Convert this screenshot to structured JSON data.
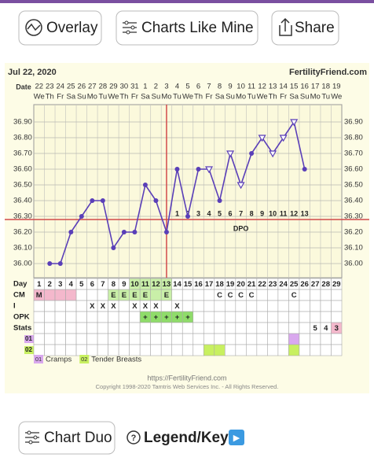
{
  "buttons": {
    "overlay": "Overlay",
    "charts_like_mine": "Charts Like Mine",
    "share": "Share",
    "chart_duo": "Chart Duo",
    "legend_key": "Legend/Key",
    "play": "▶"
  },
  "footer": {
    "url": "https://FertilityFriend.com",
    "copyright": "Copyright 1998-2020 Tamtris Web Services Inc. - All Rights Reserved."
  },
  "chart_data": {
    "type": "line",
    "date": "Jul 22, 2020",
    "site": "FertilityFriend.com",
    "xlabel": "Date",
    "categories": [
      "22",
      "23",
      "24",
      "25",
      "26",
      "27",
      "28",
      "29",
      "30",
      "31",
      "1",
      "2",
      "3",
      "4",
      "5",
      "6",
      "7",
      "8",
      "9",
      "10",
      "11",
      "12",
      "13",
      "14",
      "15",
      "16",
      "17",
      "18",
      "19"
    ],
    "weekdays": [
      "We",
      "Th",
      "Fr",
      "Sa",
      "Su",
      "Mo",
      "Tu",
      "We",
      "Th",
      "Fr",
      "Sa",
      "Su",
      "Mo",
      "Tu",
      "We",
      "Th",
      "Fr",
      "Sa",
      "Su",
      "Mo",
      "Tu",
      "We",
      "Th",
      "Fr",
      "Sa",
      "Su",
      "Mo",
      "Tu",
      "We"
    ],
    "series": [
      {
        "color": "#5a3fb8",
        "values": [
          null,
          36.0,
          36.0,
          36.2,
          36.3,
          36.4,
          36.4,
          36.1,
          36.2,
          36.2,
          36.5,
          36.4,
          36.2,
          36.6,
          36.3,
          36.6,
          36.6,
          36.4,
          36.7,
          36.5,
          36.7,
          36.8,
          36.7,
          36.8,
          36.9,
          36.6,
          null,
          null,
          null
        ],
        "markers": [
          null,
          "circle",
          "circle",
          "circle",
          "circle",
          "circle",
          "circle",
          "circle",
          "circle",
          "circle",
          "circle",
          "circle",
          "circle",
          "circle",
          "circle",
          "circle",
          "triangle",
          "circle",
          "triangle",
          "triangle",
          "circle",
          "triangle",
          "triangle",
          "triangle",
          "triangle",
          "circle",
          null,
          null,
          null
        ]
      }
    ],
    "ylim": [
      35.91,
      37.01
    ],
    "yticks": [
      {
        "value": 36.0,
        "label": "36.00"
      },
      {
        "value": 36.1,
        "label": "36.10"
      },
      {
        "value": 36.2,
        "label": "36.20"
      },
      {
        "value": 36.3,
        "label": "36.30"
      },
      {
        "value": 36.4,
        "label": "36.40"
      },
      {
        "value": 36.5,
        "label": "36.50"
      },
      {
        "value": 36.6,
        "label": "36.60"
      },
      {
        "value": 36.7,
        "label": "36.70"
      },
      {
        "value": 36.8,
        "label": "36.80"
      },
      {
        "value": 36.9,
        "label": "36.90"
      }
    ],
    "grid": true,
    "coverline": 36.28,
    "coverline_color": "#d24a4a",
    "ovulation_day": 13,
    "dpo_label": "DPO",
    "dpo": [
      null,
      null,
      null,
      null,
      null,
      null,
      null,
      null,
      null,
      null,
      null,
      null,
      null,
      1,
      2,
      3,
      4,
      5,
      6,
      7,
      8,
      9,
      10,
      11,
      12,
      13,
      null,
      null,
      null
    ],
    "rows": [
      {
        "label": "Day",
        "cells": [
          1,
          2,
          3,
          4,
          5,
          6,
          7,
          8,
          9,
          10,
          11,
          12,
          13,
          14,
          15,
          16,
          17,
          18,
          19,
          20,
          21,
          22,
          23,
          24,
          25,
          26,
          27,
          28,
          29
        ],
        "fills": [
          null,
          null,
          null,
          null,
          null,
          null,
          null,
          null,
          null,
          "#c9efa8",
          "#c9efa8",
          "#c9efa8",
          "#c9efa8",
          null,
          null,
          null,
          null,
          null,
          null,
          null,
          null,
          null,
          null,
          null,
          null,
          null,
          null,
          null,
          null
        ]
      },
      {
        "label": "CM",
        "cells": [
          "M",
          null,
          null,
          null,
          null,
          null,
          null,
          "E",
          "E",
          "E",
          "E",
          null,
          "E",
          null,
          null,
          null,
          null,
          "C",
          "C",
          "C",
          "C",
          null,
          null,
          null,
          "C",
          null,
          null,
          null,
          null
        ],
        "fills": [
          "#f4b8cc",
          "#f4b8cc",
          "#f4b8cc",
          "#f4b8cc",
          null,
          null,
          null,
          "#c9efa8",
          "#c9efa8",
          "#c9efa8",
          "#c9efa8",
          "#c9efa8",
          "#c9efa8",
          null,
          null,
          null,
          null,
          null,
          null,
          null,
          null,
          null,
          null,
          null,
          null,
          null,
          null,
          null,
          null
        ]
      },
      {
        "label": "I",
        "cells": [
          null,
          null,
          null,
          null,
          null,
          "X",
          "X",
          "X",
          null,
          "X",
          "X",
          "X",
          null,
          "X",
          null,
          null,
          null,
          null,
          null,
          null,
          null,
          null,
          null,
          null,
          null,
          null,
          null,
          null,
          null
        ],
        "fills": [
          null,
          null,
          null,
          null,
          null,
          null,
          null,
          null,
          null,
          null,
          null,
          null,
          null,
          null,
          null,
          null,
          null,
          null,
          null,
          null,
          null,
          null,
          null,
          null,
          null,
          null,
          null,
          null,
          null
        ]
      },
      {
        "label": "OPK",
        "cells": [
          null,
          null,
          null,
          null,
          null,
          null,
          null,
          null,
          null,
          null,
          "+",
          "+",
          "+",
          "+",
          "+",
          null,
          null,
          null,
          null,
          null,
          null,
          null,
          null,
          null,
          null,
          null,
          null,
          null,
          null
        ],
        "fills": [
          null,
          null,
          null,
          null,
          null,
          null,
          null,
          null,
          null,
          null,
          "#8fdc6a",
          "#8fdc6a",
          "#8fdc6a",
          "#8fdc6a",
          "#8fdc6a",
          null,
          null,
          null,
          null,
          null,
          null,
          null,
          null,
          null,
          null,
          null,
          null,
          null,
          null
        ]
      },
      {
        "label": "Stats",
        "cells": [
          null,
          null,
          null,
          null,
          null,
          null,
          null,
          null,
          null,
          null,
          null,
          null,
          null,
          null,
          null,
          null,
          null,
          null,
          null,
          null,
          null,
          null,
          null,
          null,
          null,
          null,
          5,
          4,
          3
        ],
        "fills": [
          null,
          null,
          null,
          null,
          null,
          null,
          null,
          null,
          null,
          null,
          null,
          null,
          null,
          null,
          null,
          null,
          null,
          null,
          null,
          null,
          null,
          null,
          null,
          null,
          null,
          null,
          null,
          null,
          "#f4b8cc"
        ]
      },
      {
        "label": "01",
        "label_color": "#d9a8ee",
        "cells": [
          null,
          null,
          null,
          null,
          null,
          null,
          null,
          null,
          null,
          null,
          null,
          null,
          null,
          null,
          null,
          null,
          null,
          null,
          null,
          null,
          null,
          null,
          null,
          null,
          null,
          null,
          null,
          null,
          null
        ],
        "fills": [
          null,
          null,
          null,
          null,
          null,
          null,
          null,
          null,
          null,
          null,
          null,
          null,
          null,
          null,
          null,
          null,
          null,
          null,
          null,
          null,
          null,
          null,
          null,
          null,
          "#d9a8ee",
          null,
          null,
          null,
          null
        ]
      },
      {
        "label": "02",
        "label_color": "#c8f060",
        "cells": [
          null,
          null,
          null,
          null,
          null,
          null,
          null,
          null,
          null,
          null,
          null,
          null,
          null,
          null,
          null,
          null,
          null,
          null,
          null,
          null,
          null,
          null,
          null,
          null,
          null,
          null,
          null,
          null,
          null
        ],
        "fills": [
          null,
          null,
          null,
          null,
          null,
          null,
          null,
          null,
          null,
          null,
          null,
          null,
          null,
          null,
          null,
          null,
          "#c8f060",
          "#c8f060",
          null,
          null,
          null,
          null,
          null,
          null,
          "#c8f060",
          null,
          null,
          null,
          null
        ]
      }
    ],
    "legend": [
      {
        "code": "01",
        "label": "Cramps",
        "color": "#d9a8ee"
      },
      {
        "code": "02",
        "label": "Tender Breasts",
        "color": "#c8f060"
      }
    ]
  }
}
